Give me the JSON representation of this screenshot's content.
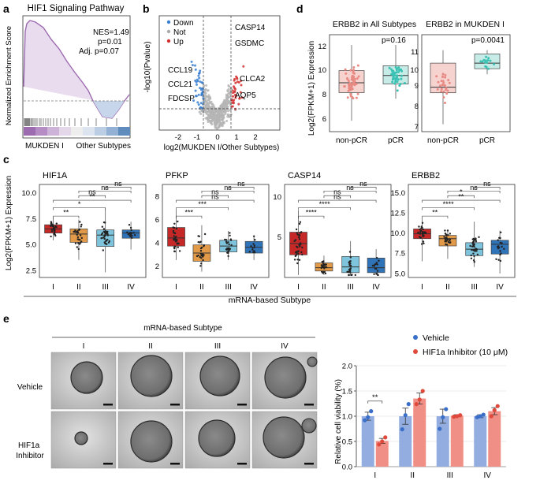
{
  "panel_letters": {
    "a": "a",
    "b": "b",
    "c": "c",
    "d": "d",
    "e": "e"
  },
  "colors": {
    "subtype_I": "#c62828",
    "subtype_II": "#e29a48",
    "subtype_III": "#7ec4dc",
    "subtype_IV": "#2f73b8",
    "nonpcr": "#e88b84",
    "pcr": "#3cc2b4",
    "vehicle": "#3a6fc9",
    "inhibitor": "#e04a3c",
    "gsea_curve": "#9c6bb0"
  },
  "gsea": {
    "title": "HIF1 Signaling Pathway",
    "nes": "NES=1.49",
    "p": "p=0.01",
    "adj_p": "Adj. p=0.07",
    "ylabel": "Normalized Enrichment Score",
    "left_label": "MUKDEN I",
    "right_label": "Other Subtypes"
  },
  "volcano": {
    "title": "",
    "xlabel": "log2(MUKDEN I/Other Subtypes)",
    "ylabel": "-log10(Pvalue)",
    "legend": [
      "Down",
      "Not",
      "Up"
    ],
    "x_ticks": [
      "-2",
      "-1",
      "0",
      "1",
      "2"
    ],
    "down_genes": [
      "CCL19",
      "CCL21",
      "FDCSP"
    ],
    "up_genes": [
      "CASP14",
      "GSDMC",
      "CLCA2",
      "AQP5"
    ]
  },
  "erbb2_boxes": {
    "ylabel": "Log2(FPKM+1) Expression",
    "left": {
      "title": "ERBB2 in All Subtypes",
      "p": "p=0.16",
      "categories": [
        "non-pCR",
        "pCR"
      ],
      "y_ticks": [
        "6",
        "8",
        "10",
        "12"
      ],
      "ylim": [
        5,
        13
      ]
    },
    "right": {
      "title": "ERBB2 in MUKDEN I",
      "p": "p=0.0041",
      "categories": [
        "non-pCR",
        "pCR"
      ],
      "y_ticks": [
        "7",
        "8",
        "9",
        "10",
        "11"
      ],
      "ylim": [
        6.8,
        11.5
      ]
    }
  },
  "subtype_boxes": {
    "ylabel": "Log2(FPKM+1) Expression",
    "xlabel": "mRNA-based Subtype",
    "categories": [
      "I",
      "II",
      "III",
      "IV"
    ],
    "genes": [
      {
        "title": "HIF1A",
        "y_ticks": [
          "2.5",
          "5.0",
          "7.5",
          "10.0"
        ],
        "sig": [
          "**",
          "*",
          "**",
          "ns",
          "ns",
          "ns"
        ]
      },
      {
        "title": "PFKP",
        "y_ticks": [
          "2",
          "4",
          "6",
          "8"
        ],
        "sig": [
          "***",
          "***",
          "ns",
          "ns",
          "ns",
          "ns"
        ]
      },
      {
        "title": "CASP14",
        "y_ticks": [
          "5",
          "10"
        ],
        "sig": [
          "****",
          "****",
          "ns",
          "ns",
          "ns",
          "ns"
        ]
      },
      {
        "title": "ERBB2",
        "y_ticks": [
          "5.0",
          "7.5",
          "10.0",
          "12.5",
          "15.0"
        ],
        "sig": [
          "**",
          "****",
          "**",
          "*",
          "ns",
          "ns"
        ]
      }
    ]
  },
  "organoids": {
    "header": "mRNA-based Subtype",
    "columns": [
      "I",
      "II",
      "III",
      "IV"
    ],
    "rows": [
      "Vehicle",
      "HIF1a\nInhibitor"
    ]
  },
  "chart_data": {
    "type": "bar",
    "title": "",
    "categories": [
      "I",
      "II",
      "III",
      "IV"
    ],
    "xlabel": "",
    "ylabel": "Relative cell viability (%)",
    "ylim": [
      0,
      2.0
    ],
    "y_ticks": [
      "0.0",
      "0.5",
      "1.0",
      "1.5",
      "2.0"
    ],
    "legend_position": "top",
    "significance": [
      "**",
      "",
      "",
      ""
    ],
    "series": [
      {
        "name": "Vehicle",
        "values": [
          1.0,
          1.0,
          1.0,
          1.0
        ],
        "errors": [
          0.08,
          0.16,
          0.14,
          0.03
        ],
        "points": [
          [
            0.92,
            0.98,
            1.1
          ],
          [
            0.74,
            1.02,
            1.24
          ],
          [
            0.75,
            0.98,
            1.14
          ],
          [
            0.98,
            1.0,
            1.03
          ]
        ]
      },
      {
        "name": "HIF1a Inhibitor (10 μM)",
        "values": [
          0.51,
          1.35,
          1.01,
          1.1
        ],
        "errors": [
          0.05,
          0.11,
          0.02,
          0.07
        ],
        "points": [
          [
            0.44,
            0.5,
            0.58
          ],
          [
            1.24,
            1.33,
            1.5
          ],
          [
            0.99,
            1.0,
            1.02
          ],
          [
            1.0,
            1.12,
            1.2
          ]
        ]
      }
    ]
  }
}
